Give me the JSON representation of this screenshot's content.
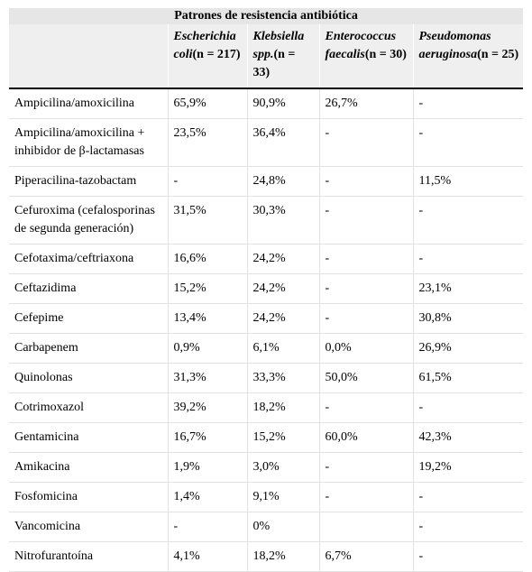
{
  "table": {
    "title": "Patrones de resistencia antibiótica",
    "columns": [
      {
        "name": "Escherichia coli",
        "n": "(n = 217)"
      },
      {
        "name": "Klebsiella spp.",
        "n": "(n = 33)"
      },
      {
        "name": "Enterococcus faecalis",
        "n": "(n = 30)"
      },
      {
        "name": "Pseudomonas aeruginosa",
        "n": "(n = 25)"
      }
    ],
    "rows": [
      [
        "Ampicilina/amoxicilina",
        "65,9%",
        "90,9%",
        "26,7%",
        "-"
      ],
      [
        "Ampicilina/amoxicilina + inhibidor de β-lactamasas",
        "23,5%",
        "36,4%",
        "-",
        "-"
      ],
      [
        "Piperacilina-tazobactam",
        "-",
        "24,8%",
        "-",
        "11,5%"
      ],
      [
        "Cefuroxima (cefalosporinas de segunda generación)",
        "31,5%",
        "30,3%",
        "-",
        "-"
      ],
      [
        "Cefotaxima/ceftriaxona",
        "16,6%",
        "24,2%",
        "-",
        "-"
      ],
      [
        "Ceftazidima",
        "15,2%",
        "24,2%",
        "-",
        "23,1%"
      ],
      [
        "Cefepime",
        "13,4%",
        "24,2%",
        "-",
        "30,8%"
      ],
      [
        "Carbapenem",
        "0,9%",
        "6,1%",
        "0,0%",
        "26,9%"
      ],
      [
        "Quinolonas",
        "31,3%",
        "33,3%",
        "50,0%",
        "61,5%"
      ],
      [
        "Cotrimoxazol",
        "39,2%",
        "18,2%",
        "-",
        "-"
      ],
      [
        "Gentamicina",
        "16,7%",
        "15,2%",
        "60,0%",
        "42,3%"
      ],
      [
        "Amikacina",
        "1,9%",
        "3,0%",
        "-",
        "19,2%"
      ],
      [
        "Fosfomicina",
        "1,4%",
        "9,1%",
        "-",
        "-"
      ],
      [
        "Vancomicina",
        "-",
        "0%",
        null,
        "-"
      ],
      [
        "Nitrofurantoína",
        "4,1%",
        "18,2%",
        "6,7%",
        "-"
      ]
    ]
  }
}
